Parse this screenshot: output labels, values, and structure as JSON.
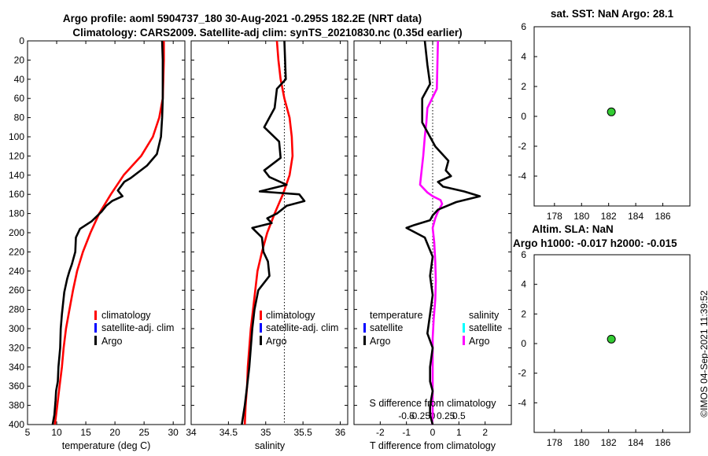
{
  "header": {
    "line1": "Argo profile: aoml 5904737_180 30-Aug-2021 -0.295S 182.2E (NRT data)",
    "line2": "Climatology: CARS2009. Satellite-adj clim: synTS_20210830.nc (0.35d earlier)"
  },
  "watermark": "©IMOS 04-Sep-2021 11:39:52",
  "colors": {
    "climatology": "#ff0000",
    "satellite_adj": "#0000ff",
    "argo": "#000000",
    "salinity_sat": "#00ffff",
    "salinity_argo": "#ff00ff",
    "marker": "#33cc33"
  },
  "chart_data": [
    {
      "id": "temperature",
      "type": "line",
      "xlabel": "temperature (deg C)",
      "xlim": [
        5,
        32
      ],
      "xticks": [
        5,
        10,
        15,
        20,
        25,
        30
      ],
      "ylim": [
        0,
        400
      ],
      "yticks": [
        0,
        20,
        40,
        60,
        80,
        100,
        120,
        140,
        160,
        180,
        200,
        220,
        240,
        260,
        280,
        300,
        320,
        340,
        360,
        380,
        400
      ],
      "legend": [
        "climatology",
        "satellite-adj. clim",
        "Argo"
      ],
      "series": [
        {
          "name": "climatology",
          "color": "#ff0000",
          "x": [
            28.4,
            28.4,
            28.3,
            28.2,
            27.6,
            26.5,
            24.5,
            21.5,
            19.3,
            17.3,
            15.8,
            14.5,
            13.5,
            12.8,
            12.2,
            11.6,
            11.2,
            10.9,
            10.5,
            10.1,
            9.7
          ],
          "y": [
            0,
            20,
            40,
            60,
            80,
            100,
            120,
            140,
            160,
            180,
            200,
            220,
            240,
            260,
            280,
            300,
            320,
            340,
            360,
            380,
            400
          ]
        },
        {
          "name": "Argo",
          "color": "#000000",
          "x": [
            28.1,
            28.2,
            28.2,
            28.2,
            28.1,
            27.9,
            27.2,
            25.5,
            22.7,
            21.6,
            20.5,
            21.3,
            19.5,
            18.5,
            17.7,
            16.0,
            14.0,
            13.3,
            13.2,
            12.6,
            12.2,
            11.8,
            11.3,
            10.9,
            10.7,
            10.6,
            10.3,
            10.2,
            9.9,
            9.8,
            9.6,
            9.3
          ],
          "y": [
            0,
            20,
            40,
            60,
            80,
            100,
            118,
            130,
            143,
            147,
            156,
            162,
            167,
            172,
            178,
            188,
            196,
            205,
            220,
            233,
            240,
            248,
            262,
            285,
            300,
            320,
            340,
            355,
            365,
            375,
            390,
            400
          ]
        }
      ]
    },
    {
      "id": "salinity",
      "type": "line",
      "xlabel": "salinity",
      "xlim": [
        34,
        36.1
      ],
      "xticks": [
        34,
        34.5,
        35,
        35.5,
        36
      ],
      "ylim": [
        0,
        400
      ],
      "legend": [
        "climatology",
        "satellite-adj. clim",
        "Argo"
      ],
      "series": [
        {
          "name": "climatology",
          "color": "#ff0000",
          "x": [
            35.15,
            35.17,
            35.2,
            35.25,
            35.32,
            35.35,
            35.36,
            35.32,
            35.23,
            35.12,
            35.02,
            34.95,
            34.89,
            34.86,
            34.83,
            34.8,
            34.78,
            34.76,
            34.75,
            34.73,
            34.72
          ],
          "y": [
            0,
            20,
            40,
            60,
            80,
            100,
            120,
            140,
            160,
            180,
            200,
            220,
            240,
            260,
            280,
            300,
            320,
            340,
            360,
            380,
            400
          ]
        },
        {
          "name": "Argo",
          "color": "#000000",
          "x": [
            35.25,
            35.26,
            35.27,
            35.15,
            35.12,
            34.98,
            35.18,
            35.2,
            34.98,
            35.05,
            35.28,
            34.92,
            35.45,
            35.52,
            35.28,
            35.15,
            35.02,
            35.08,
            34.82,
            34.95,
            34.97,
            35.03,
            35.05,
            34.9,
            34.85,
            34.82,
            34.8,
            34.78,
            34.75,
            34.72,
            34.68
          ],
          "y": [
            0,
            20,
            40,
            50,
            70,
            90,
            105,
            122,
            135,
            142,
            150,
            157,
            160,
            167,
            172,
            180,
            185,
            190,
            195,
            205,
            220,
            230,
            245,
            260,
            280,
            300,
            320,
            340,
            360,
            380,
            400
          ]
        }
      ]
    },
    {
      "id": "differences",
      "type": "line",
      "xlabel": "T difference from climatology",
      "xlabel2": "S difference from climatology",
      "xlim": [
        -3,
        3
      ],
      "xticks": [
        -2,
        -1,
        0,
        1,
        2
      ],
      "s_tick_labels": [
        "-0.5",
        "-0.25",
        "0",
        "0.25",
        "0.5"
      ],
      "s_tick_values": [
        -0.5,
        -0.25,
        0,
        0.25,
        0.5
      ],
      "ylim": [
        0,
        400
      ],
      "legend_temperature_title": "temperature",
      "legend_temperature": [
        "satellite",
        "Argo"
      ],
      "legend_salinity_title": "salinity",
      "legend_salinity": [
        "satellite",
        "Argo"
      ],
      "series": [
        {
          "name": "T Argo - clim",
          "color": "#000000",
          "x": [
            -0.3,
            -0.2,
            -0.1,
            -0.4,
            -0.4,
            0.1,
            0.6,
            0.5,
            0.7,
            0.2,
            0.4,
            1.2,
            1.8,
            0.9,
            0.2,
            0.0,
            -0.1,
            -0.7,
            -1.0,
            -0.3,
            0.0,
            -0.1,
            0.0,
            -0.1,
            -0.2,
            0.0,
            -0.1,
            -0.1,
            0.0,
            -0.1,
            -0.1,
            0.0
          ],
          "y": [
            0,
            25,
            45,
            60,
            85,
            110,
            125,
            135,
            141,
            147,
            152,
            157,
            162,
            168,
            176,
            182,
            187,
            192,
            195,
            205,
            225,
            245,
            265,
            285,
            305,
            320,
            340,
            355,
            365,
            380,
            390,
            400
          ]
        },
        {
          "name": "S Argo - clim",
          "color": "#ff00ff",
          "x": [
            0.1,
            0.09,
            0.08,
            -0.1,
            -0.12,
            -0.15,
            -0.18,
            -0.22,
            -0.24,
            -0.1,
            0.0,
            0.15,
            0.18,
            0.1,
            0.05,
            0.0,
            0.03,
            0.05,
            0.06,
            0.05,
            0.02,
            0.0,
            0.0,
            0.0,
            0.0,
            0.0,
            -0.01
          ],
          "y": [
            0,
            25,
            50,
            70,
            85,
            100,
            120,
            140,
            150,
            158,
            162,
            166,
            170,
            178,
            185,
            195,
            210,
            230,
            250,
            270,
            290,
            310,
            330,
            350,
            370,
            390,
            400
          ]
        }
      ]
    },
    {
      "id": "sst",
      "type": "scatter",
      "title": "sat. SST: NaN Argo: 28.1",
      "xlim": [
        176.5,
        188
      ],
      "xticks": [
        178,
        180,
        182,
        184,
        186
      ],
      "ylim": [
        -6,
        6
      ],
      "yticks": [
        6,
        4,
        2,
        0,
        -2,
        -4
      ],
      "points": [
        {
          "x": 182.2,
          "y": 0.3
        }
      ]
    },
    {
      "id": "sla",
      "type": "scatter",
      "title": "Altim. SLA: NaN",
      "subtitle": "Argo h1000: -0.017 h2000: -0.015",
      "xlim": [
        176.5,
        188
      ],
      "xticks": [
        178,
        180,
        182,
        184,
        186
      ],
      "ylim": [
        -6,
        6
      ],
      "yticks": [
        6,
        4,
        2,
        0,
        -2,
        -4
      ],
      "points": [
        {
          "x": 182.2,
          "y": 0.3
        }
      ]
    }
  ]
}
